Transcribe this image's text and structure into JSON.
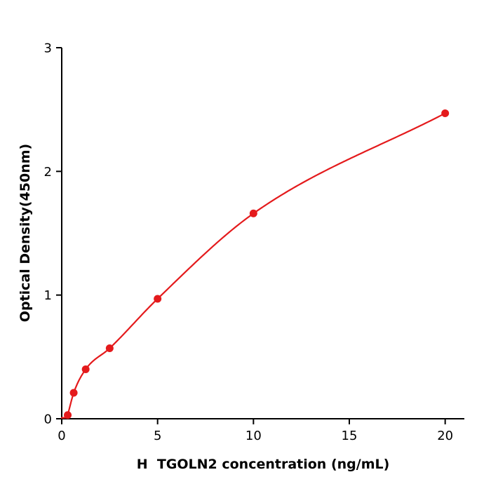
{
  "page": {
    "background": "#ffffff"
  },
  "chart_data": {
    "type": "scatter",
    "title": "",
    "xlabel": "H  TGOLN2 concentration (ng/mL)",
    "ylabel": "Optical Density(450nm)",
    "x": [
      0.3125,
      0.625,
      1.25,
      2.5,
      5,
      10,
      20
    ],
    "y": [
      0.03,
      0.21,
      0.4,
      0.57,
      0.97,
      1.66,
      2.47
    ],
    "xlim": [
      0,
      21
    ],
    "ylim": [
      0,
      3
    ],
    "xticks": [
      0,
      5,
      10,
      15,
      20
    ],
    "yticks": [
      0,
      1,
      2,
      3
    ],
    "grid": false,
    "legend_position": "none",
    "marker_color": "#e41a1c",
    "line_color": "#e41a1c",
    "axis_color": "#000000",
    "curve_style": "smooth-fit-through-points"
  }
}
